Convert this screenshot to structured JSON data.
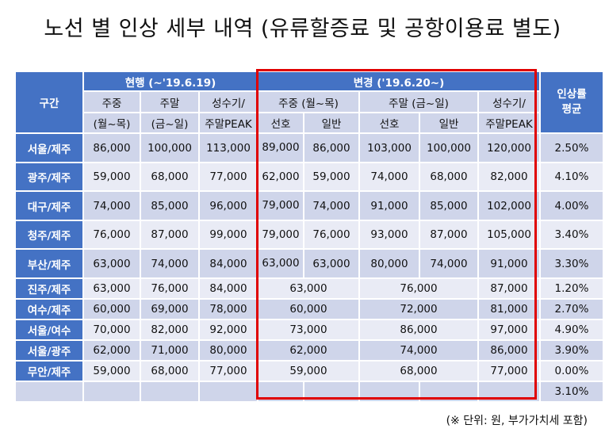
{
  "title": "노선 별 인상 세부 내역 (유류할증료 및 공항이용료 별도)",
  "header": {
    "section_label": "구간",
    "current_group": "현행 (~'19.6.19)",
    "changed_group": "변경 ('19.6.20~)",
    "avg_label": "인상률 평균",
    "current_cols": [
      {
        "top": "주중",
        "bottom": "(월~목)"
      },
      {
        "top": "주말",
        "bottom": "(금~일)"
      },
      {
        "top": "성수기/",
        "bottom": "주말PEAK"
      }
    ],
    "changed_groups": [
      {
        "top": "주중 (월~목)",
        "subs": [
          "선호",
          "일반"
        ]
      },
      {
        "top": "주말 (금~일)",
        "subs": [
          "선호",
          "일반"
        ]
      }
    ],
    "changed_peak": {
      "top": "성수기/",
      "bottom": "주말PEAK"
    }
  },
  "rows": [
    {
      "route": "서울/제주",
      "cur": [
        "86,000",
        "100,000",
        "113,000"
      ],
      "wd": [
        "89,000",
        "86,000"
      ],
      "we": [
        "103,000",
        "100,000"
      ],
      "peak": "120,000",
      "rate": "2.50%"
    },
    {
      "route": "광주/제주",
      "cur": [
        "59,000",
        "68,000",
        "77,000"
      ],
      "wd": [
        "62,000",
        "59,000"
      ],
      "we": [
        "74,000",
        "68,000"
      ],
      "peak": "82,000",
      "rate": "4.10%"
    },
    {
      "route": "대구/제주",
      "cur": [
        "74,000",
        "85,000",
        "96,000"
      ],
      "wd": [
        "79,000",
        "74,000"
      ],
      "we": [
        "91,000",
        "85,000"
      ],
      "peak": "102,000",
      "rate": "4.00%"
    },
    {
      "route": "청주/제주",
      "cur": [
        "76,000",
        "87,000",
        "99,000"
      ],
      "wd": [
        "79,000",
        "76,000"
      ],
      "we": [
        "93,000",
        "87,000"
      ],
      "peak": "105,000",
      "rate": "3.40%"
    },
    {
      "route": "부산/제주",
      "cur": [
        "63,000",
        "74,000",
        "84,000"
      ],
      "wd": [
        "63,000",
        "63,000"
      ],
      "we": [
        "80,000",
        "74,000"
      ],
      "peak": "91,000",
      "rate": "3.30%"
    },
    {
      "route": "진주/제주",
      "cur": [
        "63,000",
        "76,000",
        "84,000"
      ],
      "wd": [
        "63,000"
      ],
      "we": [
        "76,000"
      ],
      "peak": "87,000",
      "rate": "1.20%"
    },
    {
      "route": "여수/제주",
      "cur": [
        "60,000",
        "69,000",
        "78,000"
      ],
      "wd": [
        "60,000"
      ],
      "we": [
        "72,000"
      ],
      "peak": "81,000",
      "rate": "2.70%"
    },
    {
      "route": "서울/여수",
      "cur": [
        "70,000",
        "82,000",
        "92,000"
      ],
      "wd": [
        "73,000"
      ],
      "we": [
        "86,000"
      ],
      "peak": "97,000",
      "rate": "4.90%"
    },
    {
      "route": "서울/광주",
      "cur": [
        "62,000",
        "71,000",
        "80,000"
      ],
      "wd": [
        "62,000"
      ],
      "we": [
        "74,000"
      ],
      "peak": "86,000",
      "rate": "3.90%"
    },
    {
      "route": "무안/제주",
      "cur": [
        "59,000",
        "68,000",
        "77,000"
      ],
      "wd": [
        "59,000"
      ],
      "we": [
        "68,000"
      ],
      "peak": "77,000",
      "rate": "0.00%"
    }
  ],
  "footer_avg": "3.10%",
  "note": "(※ 단위: 원, 부가가치세 포함)",
  "colors": {
    "header_blue": "#4472c4",
    "row_dark": "#cfd5ea",
    "row_light": "#e9ebf5",
    "highlight_red": "#e00000"
  }
}
